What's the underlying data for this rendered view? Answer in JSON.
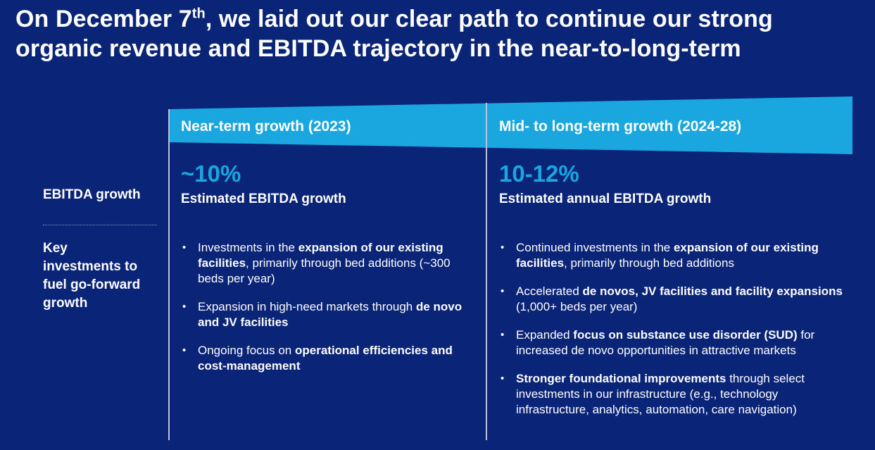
{
  "title": {
    "line1_before": "On December 7",
    "line1_sup": "th",
    "line1_after": ", we laid out our clear path to continue our strong",
    "line2": "organic revenue and EBITDA trajectory in the near-to-long-term"
  },
  "colors": {
    "background": "#0a2478",
    "banner": "#1aa7e0",
    "accent_number": "#1aa7e0",
    "text": "#ffffff"
  },
  "rows": {
    "ebitda_label": "EBITDA growth",
    "investments_label_lines": [
      "Key",
      "investments to",
      "fuel go-forward",
      "growth"
    ]
  },
  "near_term": {
    "header": "Near-term growth (2023)",
    "value": "~10%",
    "value_caption": "Estimated EBITDA growth",
    "bullets": [
      [
        {
          "t": "Investments in the ",
          "b": false
        },
        {
          "t": "expansion of our existing facilities",
          "b": true
        },
        {
          "t": ", primarily through bed additions (~300 beds per year)",
          "b": false
        }
      ],
      [
        {
          "t": "Expansion in high-need markets through ",
          "b": false
        },
        {
          "t": "de novo and JV facilities",
          "b": true
        }
      ],
      [
        {
          "t": "Ongoing focus on ",
          "b": false
        },
        {
          "t": "operational efficiencies and cost-management",
          "b": true
        }
      ]
    ]
  },
  "long_term": {
    "header": "Mid- to long-term growth (2024-28)",
    "value": "10-12%",
    "value_caption": "Estimated annual EBITDA growth",
    "bullets": [
      [
        {
          "t": "Continued investments in the ",
          "b": false
        },
        {
          "t": "expansion of our existing facilities",
          "b": true
        },
        {
          "t": ", primarily through bed additions",
          "b": false
        }
      ],
      [
        {
          "t": "Accelerated ",
          "b": false
        },
        {
          "t": "de novos, JV facilities and facility expansions",
          "b": true
        },
        {
          "t": " (1,000+ beds per year)",
          "b": false
        }
      ],
      [
        {
          "t": "Expanded ",
          "b": false
        },
        {
          "t": "focus on substance use disorder (SUD)",
          "b": true
        },
        {
          "t": " for increased de novo opportunities in attractive markets",
          "b": false
        }
      ],
      [
        {
          "t": "Stronger foundational improvements",
          "b": true
        },
        {
          "t": " through select investments in our infrastructure (e.g., technology infrastructure, analytics, automation, care navigation)",
          "b": false
        }
      ]
    ]
  }
}
